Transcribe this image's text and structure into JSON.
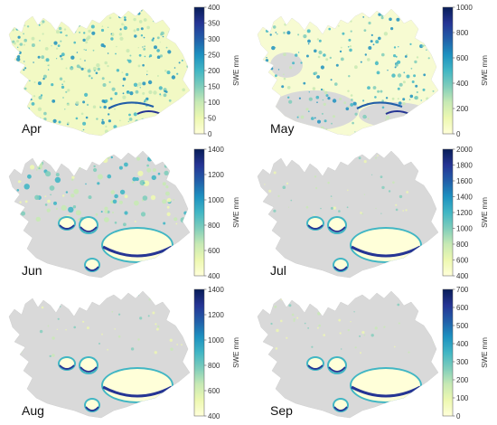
{
  "figure": {
    "colorbar_label": "SWE mm",
    "colormap": [
      "#ffffd9",
      "#edf8b1",
      "#c7e9b4",
      "#7fcdbb",
      "#41b6c4",
      "#1d91c0",
      "#225ea8",
      "#253494",
      "#081d58"
    ],
    "land_color": "#d9d9d9",
    "panels": [
      {
        "month": "Apr",
        "cbar_ticks": [
          0,
          50,
          100,
          150,
          200,
          250,
          300,
          350,
          400
        ],
        "snow": "extensive"
      },
      {
        "month": "May",
        "cbar_ticks": [
          0,
          200,
          400,
          600,
          800,
          1000
        ],
        "snow": "widespread"
      },
      {
        "month": "Jun",
        "cbar_ticks": [
          400,
          600,
          800,
          1000,
          1200,
          1400
        ],
        "snow": "patchy"
      },
      {
        "month": "Jul",
        "cbar_ticks": [
          400,
          600,
          800,
          1000,
          1200,
          1400,
          1600,
          1800,
          2000
        ],
        "snow": "glaciers"
      },
      {
        "month": "Aug",
        "cbar_ticks": [
          400,
          600,
          800,
          1000,
          1200,
          1400
        ],
        "snow": "glaciers"
      },
      {
        "month": "Sep",
        "cbar_ticks": [
          0,
          100,
          200,
          300,
          400,
          500,
          600,
          700
        ],
        "snow": "glaciers"
      }
    ]
  }
}
